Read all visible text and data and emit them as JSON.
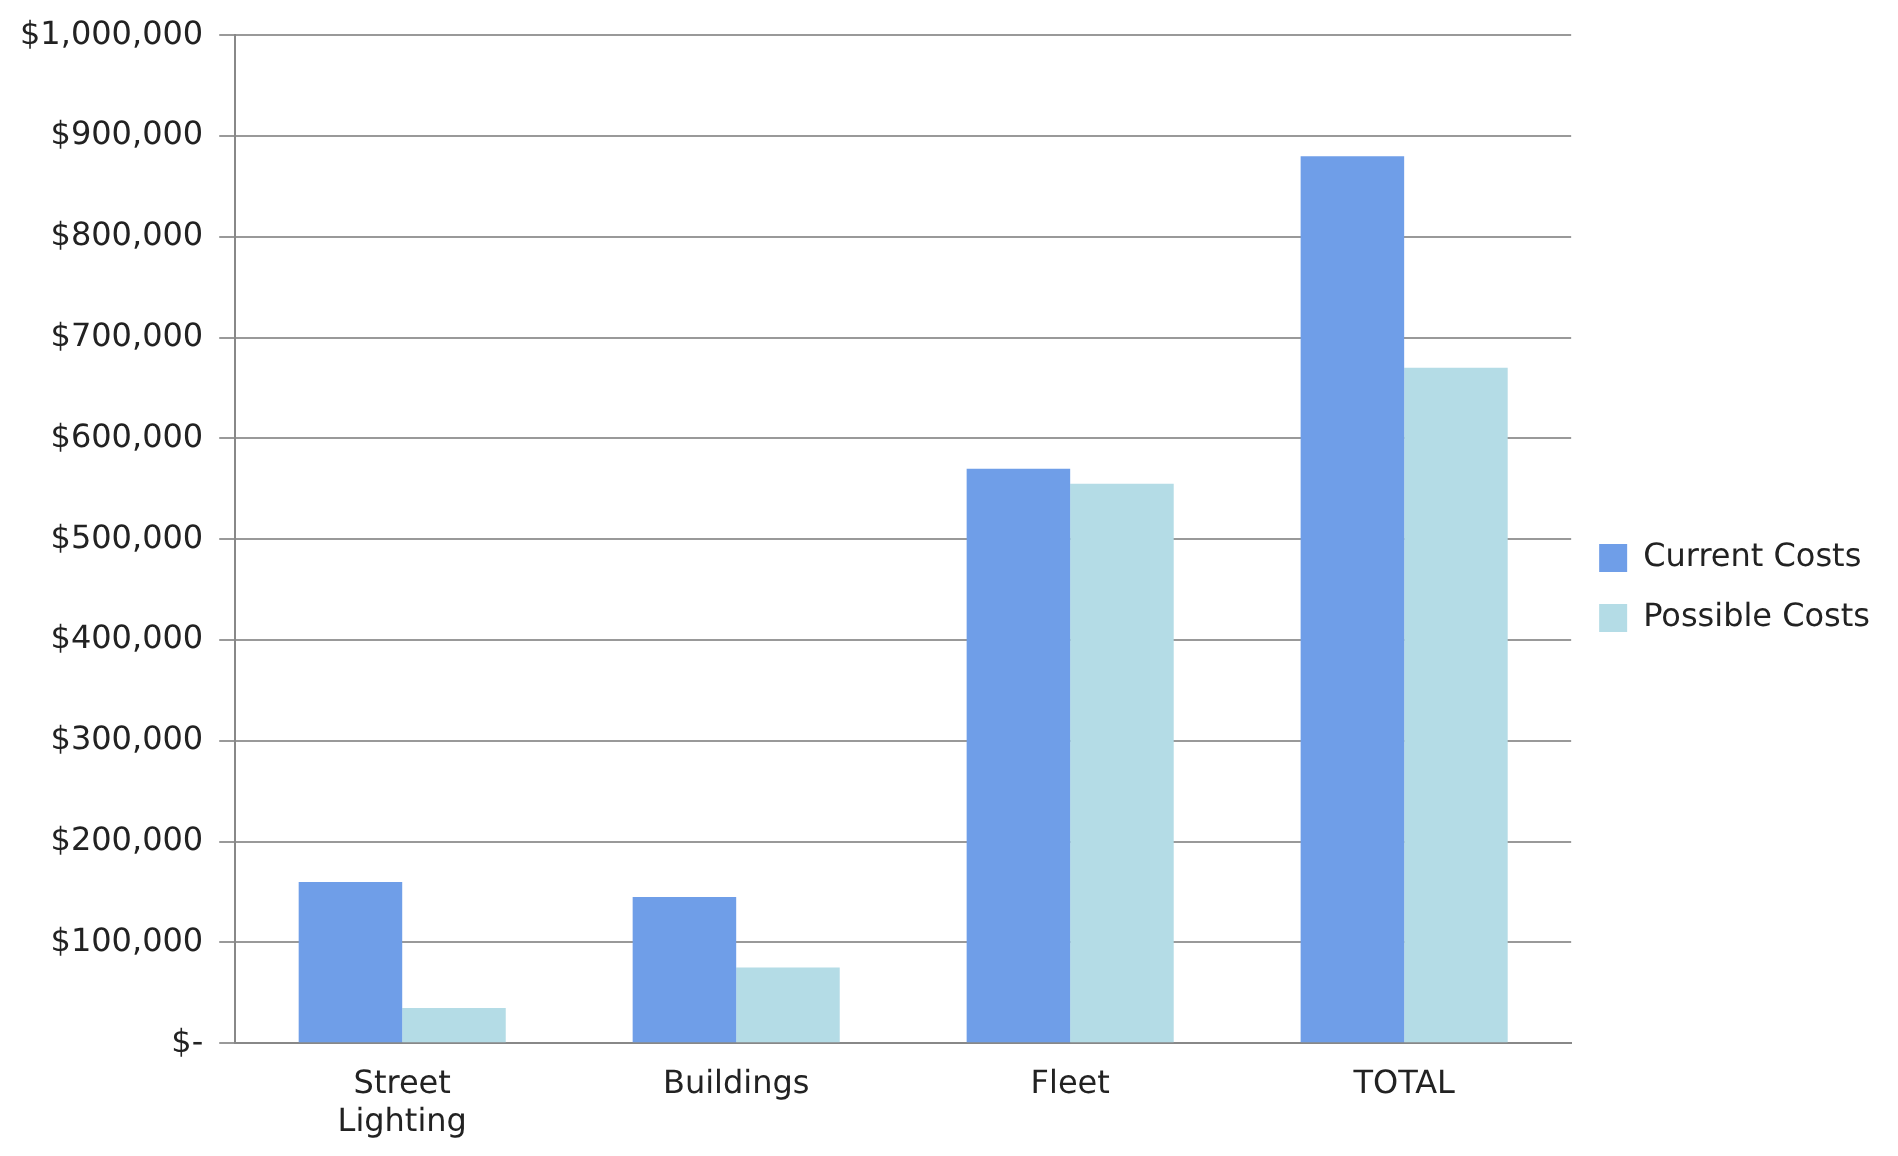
{
  "chart_data": {
    "type": "bar",
    "categories": [
      "Street Lighting",
      "Buildings",
      "Fleet",
      "TOTAL"
    ],
    "series": [
      {
        "name": "Current Costs",
        "color": "#6f9ee8",
        "values": [
          160000,
          145000,
          570000,
          880000
        ]
      },
      {
        "name": "Possible Costs",
        "color": "#b4dce6",
        "values": [
          35000,
          75000,
          555000,
          670000
        ]
      }
    ],
    "ylim": [
      0,
      1000000
    ],
    "yticks": [
      {
        "value": 0,
        "label": "$-"
      },
      {
        "value": 100000,
        "label": "$100,000"
      },
      {
        "value": 200000,
        "label": "$200,000"
      },
      {
        "value": 300000,
        "label": "$300,000"
      },
      {
        "value": 400000,
        "label": "$400,000"
      },
      {
        "value": 500000,
        "label": "$500,000"
      },
      {
        "value": 600000,
        "label": "$600,000"
      },
      {
        "value": 700000,
        "label": "$700,000"
      },
      {
        "value": 800000,
        "label": "$800,000"
      },
      {
        "value": 900000,
        "label": "$900,000"
      },
      {
        "value": 1000000,
        "label": "$1,000,000"
      }
    ],
    "grid": "y",
    "legend": "right"
  }
}
